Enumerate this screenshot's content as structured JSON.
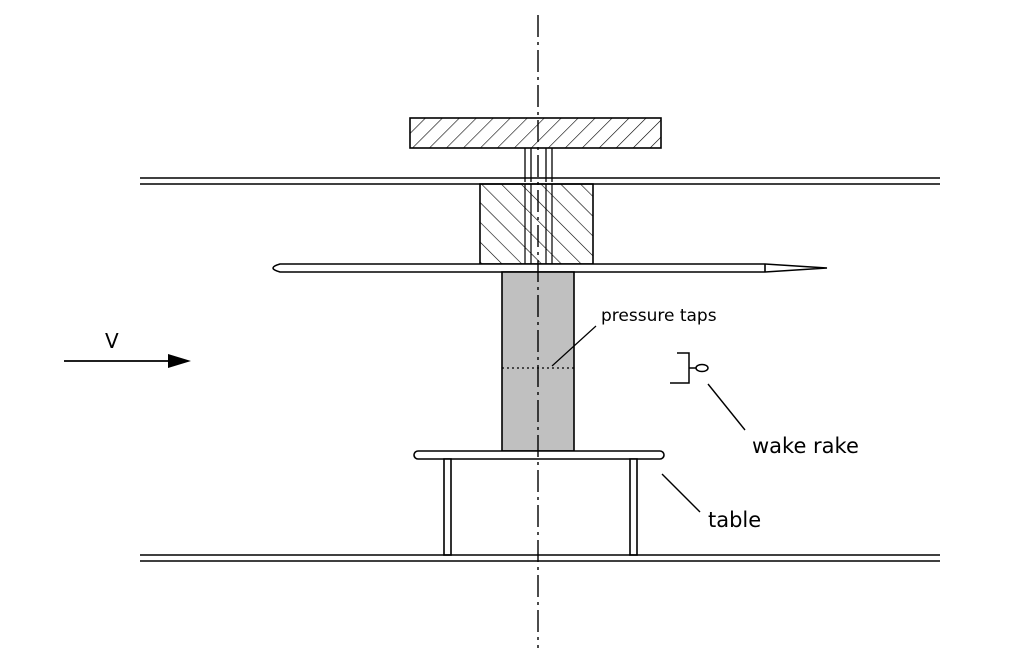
{
  "diagram": {
    "labels": {
      "velocity": "V",
      "pressure_taps": "pressure taps",
      "wake_rake": "wake rake",
      "table": "table"
    },
    "colors": {
      "line": "#000000",
      "model_fill": "#c0c0c0",
      "background": "#ffffff"
    }
  }
}
